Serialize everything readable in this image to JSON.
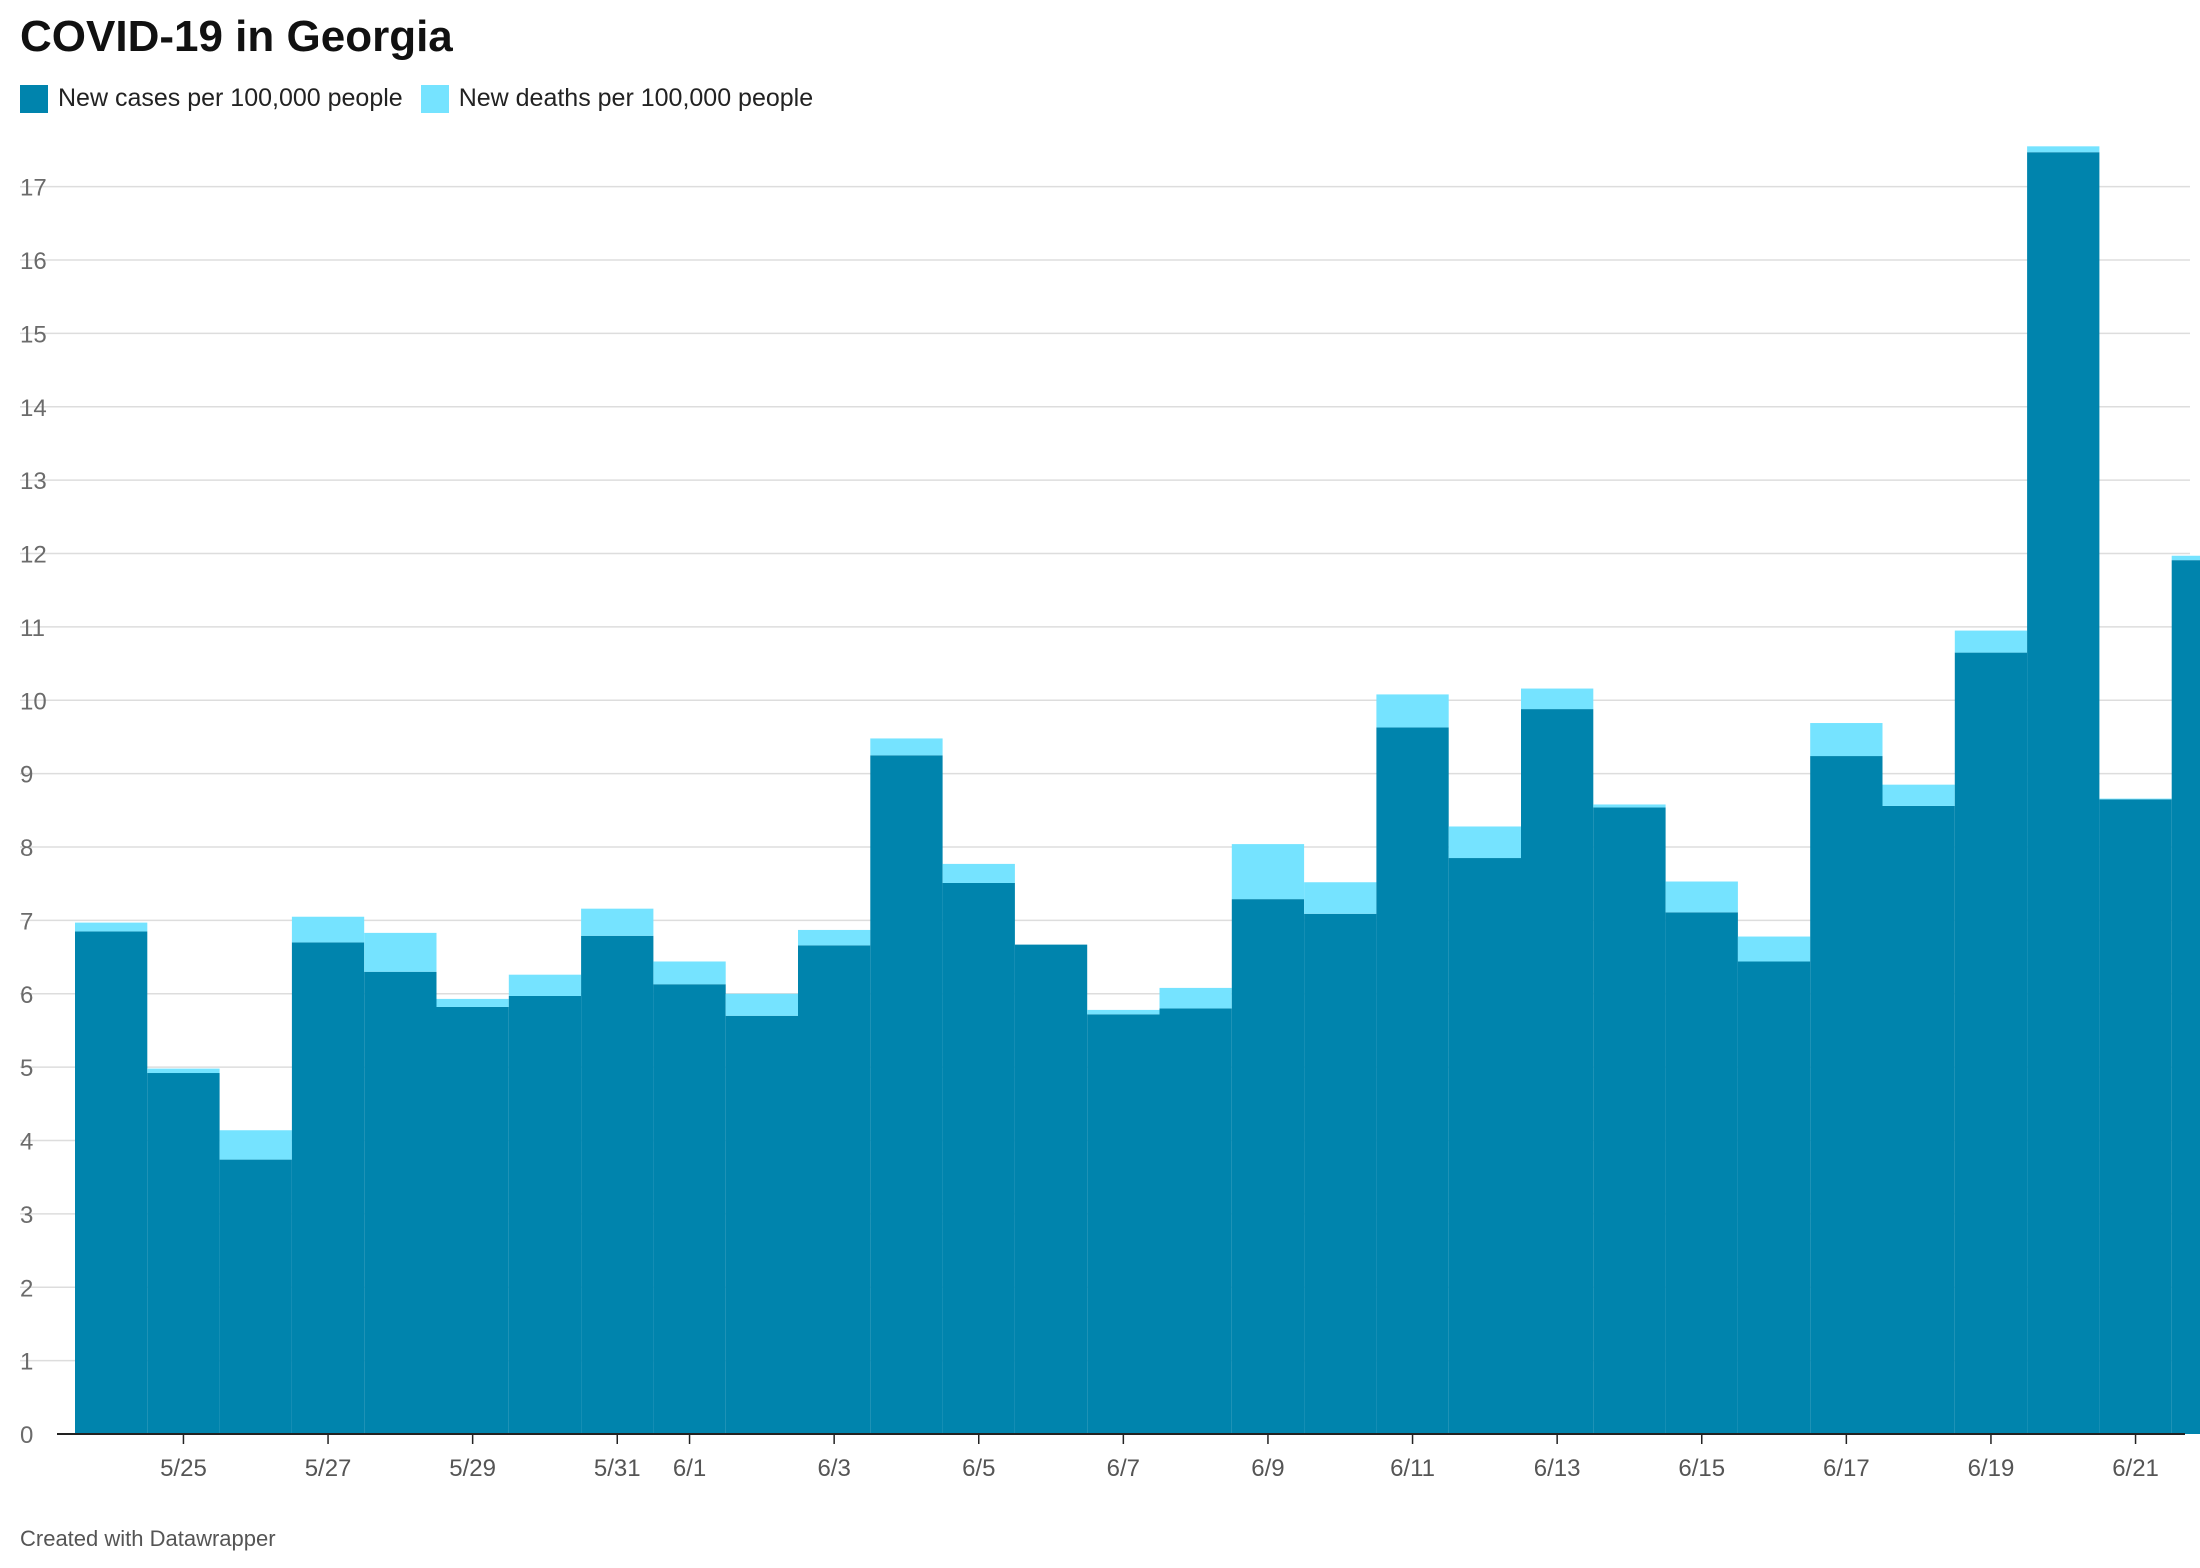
{
  "chart_data": {
    "type": "bar",
    "stacked": true,
    "title": "COVID-19 in Georgia",
    "xlabel": "",
    "ylabel": "",
    "ylim": [
      0,
      17.5
    ],
    "yticks": [
      0,
      1,
      2,
      3,
      4,
      5,
      6,
      7,
      8,
      9,
      10,
      11,
      12,
      13,
      14,
      15,
      16,
      17
    ],
    "grid": true,
    "legend_position": "top-left",
    "categories": [
      "5/24",
      "5/25",
      "5/26",
      "5/27",
      "5/28",
      "5/29",
      "5/30",
      "5/31",
      "6/1",
      "6/2",
      "6/3",
      "6/4",
      "6/5",
      "6/6",
      "6/7",
      "6/8",
      "6/9",
      "6/10",
      "6/11",
      "6/12",
      "6/13",
      "6/14",
      "6/15",
      "6/16",
      "6/17",
      "6/18",
      "6/19",
      "6/20",
      "6/21",
      "6/22"
    ],
    "x_tick_labels": [
      "5/25",
      "5/27",
      "5/29",
      "5/31",
      "6/1",
      "6/3",
      "6/5",
      "6/7",
      "6/9",
      "6/11",
      "6/13",
      "6/15",
      "6/17",
      "6/19",
      "6/21"
    ],
    "series": [
      {
        "name": "New cases per 100,000 people",
        "color": "#0084ad",
        "values": [
          6.85,
          4.92,
          3.74,
          6.7,
          6.3,
          5.82,
          5.97,
          6.79,
          6.13,
          5.7,
          6.66,
          9.25,
          7.51,
          6.67,
          5.72,
          5.8,
          7.29,
          7.09,
          9.63,
          7.85,
          9.88,
          8.54,
          7.11,
          6.44,
          9.24,
          8.56,
          10.65,
          17.47,
          8.65,
          11.91
        ]
      },
      {
        "name": "New deaths per 100,000 people",
        "color": "#75e3ff",
        "values": [
          0.12,
          0.06,
          0.4,
          0.35,
          0.53,
          0.11,
          0.29,
          0.37,
          0.31,
          0.3,
          0.21,
          0.23,
          0.26,
          0.0,
          0.06,
          0.28,
          0.75,
          0.43,
          0.45,
          0.43,
          0.28,
          0.04,
          0.42,
          0.34,
          0.45,
          0.29,
          0.3,
          0.08,
          0.01,
          0.06
        ]
      }
    ]
  },
  "footer": "Created with Datawrapper"
}
